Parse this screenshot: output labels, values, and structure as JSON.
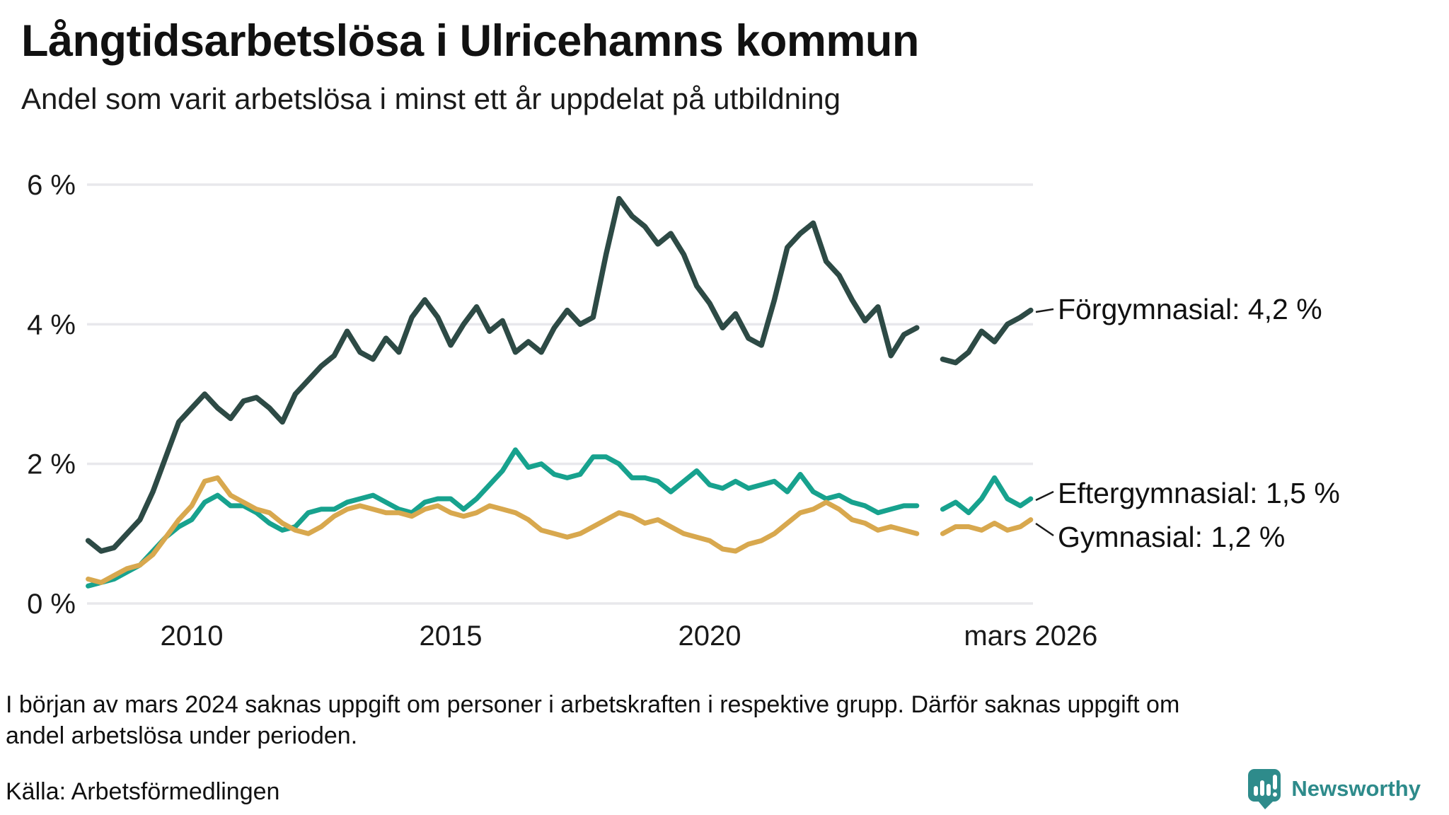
{
  "chart_data": {
    "type": "line",
    "title": "Långtidsarbetslösa i Ulricehamns kommun",
    "subtitle": "Andel som varit arbetslösa i minst ett år uppdelat på utbildning",
    "x_unit": "decimal_year_monthly_series_sampled_quarterly",
    "xlim": [
      2007.95,
      2026.3
    ],
    "ylim": [
      0,
      6.6
    ],
    "grid": "horizontal",
    "gridline_color": "#e8e8ec",
    "axis_text_color": "#191919",
    "yticks": {
      "values": [
        6,
        4,
        2,
        0
      ],
      "labels": [
        "6 %",
        "4 %",
        "2 %",
        "0 %"
      ]
    },
    "xticks": {
      "values": [
        2010,
        2015,
        2020,
        2026.2
      ],
      "labels": [
        "2010",
        "2015",
        "2020",
        "mars 2026"
      ]
    },
    "gap_note": "values are null for spring 2024 where data is missing",
    "x": [
      2008.0,
      2008.25,
      2008.5,
      2008.75,
      2009.0,
      2009.25,
      2009.5,
      2009.75,
      2010.0,
      2010.25,
      2010.5,
      2010.75,
      2011.0,
      2011.25,
      2011.5,
      2011.75,
      2012.0,
      2012.25,
      2012.5,
      2012.75,
      2013.0,
      2013.25,
      2013.5,
      2013.75,
      2014.0,
      2014.25,
      2014.5,
      2014.75,
      2015.0,
      2015.25,
      2015.5,
      2015.75,
      2016.0,
      2016.25,
      2016.5,
      2016.75,
      2017.0,
      2017.25,
      2017.5,
      2017.75,
      2018.0,
      2018.25,
      2018.5,
      2018.75,
      2019.0,
      2019.25,
      2019.5,
      2019.75,
      2020.0,
      2020.25,
      2020.5,
      2020.75,
      2021.0,
      2021.25,
      2021.5,
      2021.75,
      2022.0,
      2022.25,
      2022.5,
      2022.75,
      2023.0,
      2023.25,
      2023.5,
      2023.75,
      2024.0,
      2024.25,
      2024.5,
      2024.75,
      2025.0,
      2025.25,
      2025.5,
      2025.75,
      2026.0,
      2026.2
    ],
    "series": [
      {
        "name": "Förgymnasial",
        "legend_label": "Förgymnasial: 4,2 %",
        "final_value": "4,2 %",
        "color": "#2d4a45",
        "stroke_width": 7.5,
        "values": [
          0.9,
          0.75,
          0.8,
          1.0,
          1.2,
          1.6,
          2.1,
          2.6,
          2.8,
          3.0,
          2.8,
          2.65,
          2.9,
          2.95,
          2.8,
          2.6,
          3.0,
          3.2,
          3.4,
          3.55,
          3.9,
          3.6,
          3.5,
          3.8,
          3.6,
          4.1,
          4.35,
          4.1,
          3.7,
          4.0,
          4.25,
          3.9,
          4.05,
          3.6,
          3.75,
          3.6,
          3.95,
          4.2,
          4.0,
          4.1,
          5.0,
          5.8,
          5.55,
          5.4,
          5.15,
          5.3,
          5.0,
          4.55,
          4.3,
          3.95,
          4.15,
          3.8,
          3.7,
          4.35,
          5.1,
          5.3,
          5.45,
          4.9,
          4.7,
          4.35,
          4.05,
          4.25,
          3.55,
          3.85,
          3.95,
          null,
          3.5,
          3.45,
          3.6,
          3.9,
          3.75,
          4.0,
          4.1,
          4.2
        ]
      },
      {
        "name": "Eftergymnasial",
        "legend_label": "Eftergymnasial: 1,5 %",
        "final_value": "1,5 %",
        "color": "#17a28e",
        "stroke_width": 7,
        "values": [
          0.25,
          0.3,
          0.35,
          0.45,
          0.55,
          0.75,
          0.95,
          1.1,
          1.2,
          1.45,
          1.55,
          1.4,
          1.4,
          1.3,
          1.15,
          1.05,
          1.1,
          1.3,
          1.35,
          1.35,
          1.45,
          1.5,
          1.55,
          1.45,
          1.35,
          1.3,
          1.45,
          1.5,
          1.5,
          1.35,
          1.5,
          1.7,
          1.9,
          2.2,
          1.95,
          2.0,
          1.85,
          1.8,
          1.85,
          2.1,
          2.1,
          2.0,
          1.8,
          1.8,
          1.75,
          1.6,
          1.75,
          1.9,
          1.7,
          1.65,
          1.75,
          1.65,
          1.7,
          1.75,
          1.6,
          1.85,
          1.6,
          1.5,
          1.55,
          1.45,
          1.4,
          1.3,
          1.35,
          1.4,
          1.4,
          null,
          1.35,
          1.45,
          1.3,
          1.5,
          1.8,
          1.5,
          1.4,
          1.5
        ]
      },
      {
        "name": "Gymnasial",
        "legend_label": "Gymnasial: 1,2 %",
        "final_value": "1,2 %",
        "color": "#d8a84e",
        "stroke_width": 7,
        "values": [
          0.35,
          0.3,
          0.4,
          0.5,
          0.55,
          0.7,
          0.95,
          1.2,
          1.4,
          1.75,
          1.8,
          1.55,
          1.45,
          1.35,
          1.3,
          1.15,
          1.05,
          1.0,
          1.1,
          1.25,
          1.35,
          1.4,
          1.35,
          1.3,
          1.3,
          1.25,
          1.35,
          1.4,
          1.3,
          1.25,
          1.3,
          1.4,
          1.35,
          1.3,
          1.2,
          1.05,
          1.0,
          0.95,
          1.0,
          1.1,
          1.2,
          1.3,
          1.25,
          1.15,
          1.2,
          1.1,
          1.0,
          0.95,
          0.9,
          0.78,
          0.75,
          0.85,
          0.9,
          1.0,
          1.15,
          1.3,
          1.35,
          1.45,
          1.35,
          1.2,
          1.15,
          1.05,
          1.1,
          1.05,
          1.0,
          null,
          1.0,
          1.1,
          1.1,
          1.05,
          1.15,
          1.05,
          1.1,
          1.2
        ]
      }
    ]
  },
  "footnote": {
    "line1": "I början av mars 2024 saknas uppgift om personer i arbetskraften i respektive grupp. Därför saknas uppgift om",
    "line2": "andel arbetslösa under perioden."
  },
  "source": {
    "text": "Källa: Arbetsförmedlingen"
  },
  "branding": {
    "name": "Newsworthy",
    "color": "#2e8b8b"
  }
}
